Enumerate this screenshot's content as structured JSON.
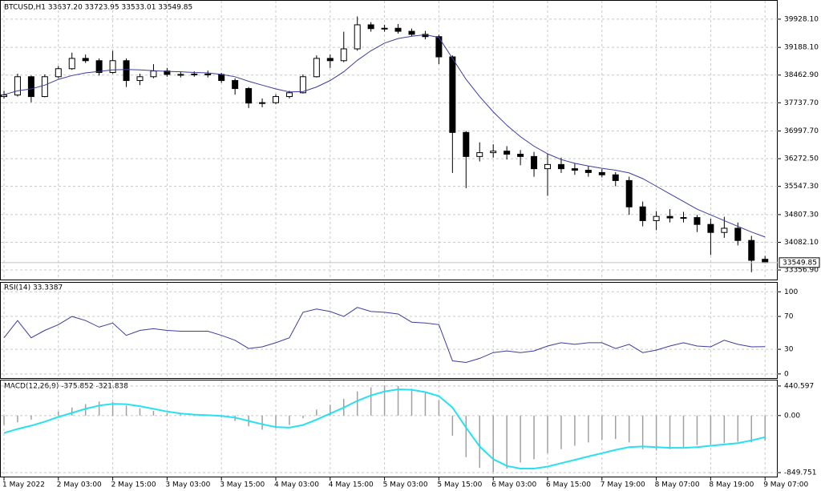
{
  "chart_data": [
    {
      "type": "candlestick",
      "title": "BTCUSD,H1  33637.20 33723.95 33533.01 33549.85",
      "open": [
        37900,
        37940,
        38420,
        37900,
        38420,
        38630,
        38900,
        38840,
        38530,
        38840,
        38320,
        38420,
        38570,
        38480,
        38470,
        38490,
        38480,
        38320,
        38110,
        37730,
        37740,
        37900,
        38000,
        38420,
        38900,
        38840,
        39150,
        39780,
        39680,
        39690,
        39610,
        39530,
        39470,
        38940,
        36960,
        36330,
        36430,
        36470,
        36390,
        36330,
        36010,
        36120,
        36010,
        35970,
        35910,
        35850,
        35700,
        35010,
        34650,
        34760,
        34720,
        34730,
        34550,
        34340,
        34450,
        34130,
        33637.2
      ],
      "high": [
        38050,
        38500,
        38450,
        38480,
        38700,
        39050,
        39000,
        38900,
        39100,
        38900,
        38500,
        38750,
        38650,
        38560,
        38560,
        38580,
        38520,
        38380,
        38150,
        37850,
        37960,
        38050,
        38480,
        38980,
        39000,
        39600,
        40000,
        39850,
        39780,
        39800,
        39680,
        39620,
        39520,
        38980,
        37000,
        36700,
        36650,
        36600,
        36500,
        36450,
        36400,
        36300,
        36150,
        36080,
        36000,
        35920,
        35800,
        35150,
        34900,
        34950,
        34880,
        34800,
        34700,
        34750,
        34600,
        34250,
        33723.95
      ],
      "low": [
        37850,
        37900,
        37750,
        37880,
        38380,
        38600,
        38780,
        38450,
        38500,
        38150,
        38200,
        38380,
        38420,
        38400,
        38420,
        38400,
        38260,
        37950,
        37600,
        37620,
        37700,
        37850,
        37980,
        38400,
        38650,
        38800,
        39100,
        39600,
        39600,
        39550,
        39480,
        39400,
        38750,
        35900,
        35500,
        36200,
        36300,
        36250,
        36100,
        35800,
        35300,
        35900,
        35850,
        35800,
        35780,
        35550,
        34800,
        34500,
        34400,
        34600,
        34600,
        34350,
        33750,
        34200,
        34000,
        33300,
        33533.01
      ],
      "close": [
        37940,
        38420,
        37900,
        38420,
        38630,
        38900,
        38840,
        38530,
        38840,
        38320,
        38420,
        38570,
        38480,
        38470,
        38490,
        38480,
        38320,
        38110,
        37730,
        37740,
        37900,
        38000,
        38420,
        38900,
        38840,
        39150,
        39780,
        39680,
        39690,
        39610,
        39530,
        39470,
        38940,
        36960,
        36330,
        36430,
        36470,
        36390,
        36330,
        36010,
        36120,
        36010,
        35970,
        35910,
        35850,
        35700,
        35010,
        34650,
        34760,
        34720,
        34730,
        34550,
        34340,
        34450,
        34130,
        33610,
        33549.85
      ],
      "series": [
        {
          "color": "#3c3c9c",
          "values": [
            37950,
            38050,
            38100,
            38200,
            38350,
            38450,
            38520,
            38560,
            38600,
            38610,
            38600,
            38580,
            38560,
            38550,
            38530,
            38520,
            38480,
            38420,
            38300,
            38200,
            38100,
            38020,
            38030,
            38150,
            38320,
            38550,
            38850,
            39100,
            39300,
            39420,
            39480,
            39520,
            39450,
            38900,
            38350,
            37900,
            37500,
            37150,
            36850,
            36600,
            36400,
            36250,
            36150,
            36080,
            36020,
            35970,
            35900,
            35750,
            35550,
            35350,
            35150,
            34950,
            34800,
            34650,
            34500,
            34350,
            34220
          ]
        }
      ],
      "last_price": 33549.85,
      "ylim": [
        33106,
        40409
      ],
      "yticks": [
        {
          "value": 39928.1,
          "label": "39928.10"
        },
        {
          "value": 39188.1,
          "label": "39188.10"
        },
        {
          "value": 38462.9,
          "label": "38462.90"
        },
        {
          "value": 37737.7,
          "label": "37737.70"
        },
        {
          "value": 36997.7,
          "label": "36997.70"
        },
        {
          "value": 36272.5,
          "label": "36272.50"
        },
        {
          "value": 35547.3,
          "label": "35547.30"
        },
        {
          "value": 34807.3,
          "label": "34807.30"
        },
        {
          "value": 34082.1,
          "label": "34082.10"
        },
        {
          "value": 33356.9,
          "label": "33356.90"
        }
      ],
      "grid": true
    },
    {
      "type": "line",
      "title": "RSI(14) 33.3387",
      "series": [
        {
          "color": "#3c3c9c",
          "values": [
            44,
            65,
            44,
            53,
            60,
            70,
            65,
            57,
            62,
            47,
            53,
            55,
            53,
            52,
            52,
            52,
            47,
            41,
            31,
            33,
            38,
            44,
            75,
            79,
            76,
            70,
            81,
            76,
            75,
            73,
            63,
            62,
            60,
            16,
            14,
            19,
            26,
            28,
            26,
            28,
            34,
            38,
            36,
            38,
            38,
            31,
            36,
            26,
            29,
            34,
            38,
            34,
            33,
            41,
            36,
            33,
            33.34
          ]
        }
      ],
      "ylim": [
        -5,
        111
      ],
      "yticks": [
        100,
        70,
        30,
        0
      ],
      "grid": true
    },
    {
      "type": "macd",
      "title": "MACD(12,26,9) -375.852 -321.838",
      "categories": [
        "1 May 2022",
        null,
        null,
        null,
        "2 May 03:00",
        null,
        null,
        null,
        "2 May 15:00",
        null,
        null,
        null,
        "3 May 03:00",
        null,
        null,
        null,
        "3 May 15:00",
        null,
        null,
        null,
        "4 May 03:00",
        null,
        null,
        null,
        "4 May 15:00",
        null,
        null,
        null,
        "5 May 03:00",
        null,
        null,
        null,
        "5 May 15:00",
        null,
        null,
        null,
        "6 May 03:00",
        null,
        null,
        null,
        "6 May 15:00",
        null,
        null,
        null,
        "7 May 19:00",
        null,
        null,
        null,
        "8 May 07:00",
        null,
        null,
        null,
        "8 May 19:00",
        null,
        null,
        null,
        "9 May 07:00"
      ],
      "series": [
        {
          "color": "#a0a0a0",
          "values": [
            -140,
            -100,
            -60,
            0,
            60,
            120,
            170,
            210,
            200,
            150,
            110,
            70,
            40,
            20,
            10,
            0,
            -30,
            -80,
            -160,
            -210,
            -190,
            -140,
            -40,
            90,
            160,
            250,
            360,
            420,
            450,
            440,
            400,
            340,
            230,
            -300,
            -620,
            -780,
            -840,
            -790,
            -700,
            -650,
            -560,
            -500,
            -450,
            -400,
            -360,
            -350,
            -400,
            -500,
            -520,
            -500,
            -470,
            -440,
            -430,
            -410,
            -390,
            -400,
            -375.852
          ]
        },
        {
          "color": "#27e1f0",
          "values": [
            -260,
            -200,
            -150,
            -90,
            -20,
            40,
            100,
            150,
            175,
            170,
            140,
            100,
            60,
            30,
            15,
            5,
            -5,
            -30,
            -80,
            -130,
            -170,
            -180,
            -140,
            -60,
            30,
            120,
            220,
            300,
            360,
            390,
            385,
            350,
            290,
            120,
            -180,
            -460,
            -650,
            -750,
            -790,
            -790,
            -760,
            -710,
            -660,
            -610,
            -560,
            -510,
            -470,
            -460,
            -470,
            -480,
            -480,
            -470,
            -450,
            -430,
            -410,
            -370,
            -321.838
          ]
        }
      ],
      "ylim": [
        -909,
        523
      ],
      "yticks": [
        440.597,
        {
          "value": 0,
          "label": "0.00"
        },
        -849.751
      ],
      "grid": true
    }
  ]
}
